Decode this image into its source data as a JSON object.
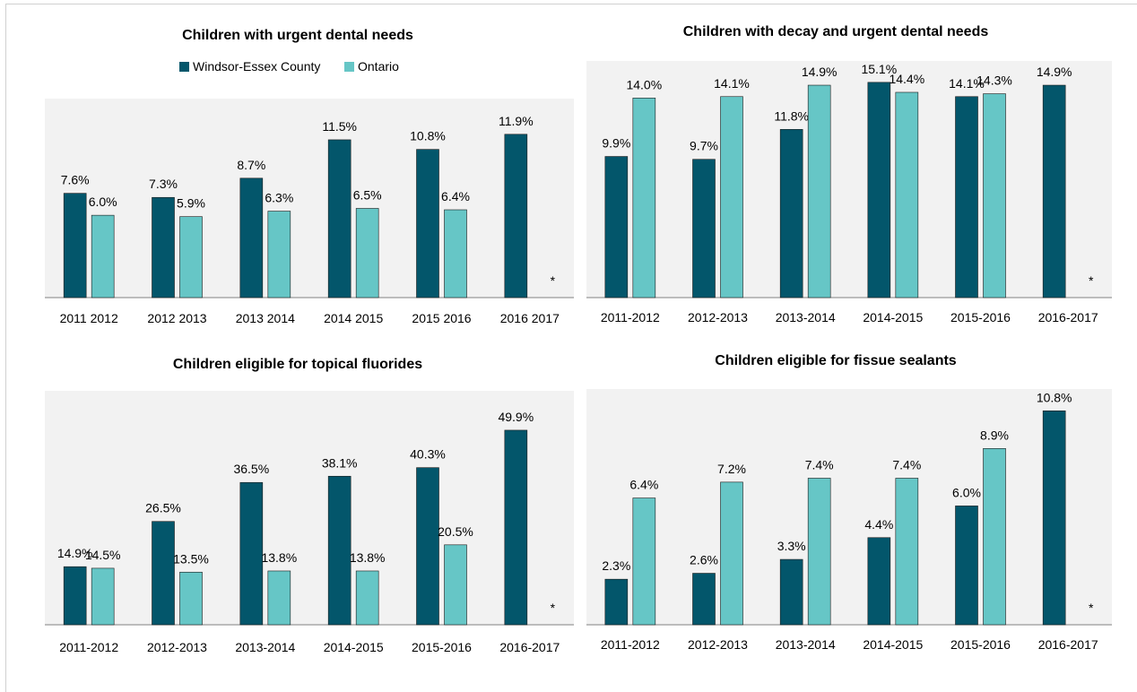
{
  "colors": {
    "windsor": "#03566b",
    "ontario": "#66c6c6",
    "plot_bg": "#f2f2f2"
  },
  "legend": {
    "windsor_label": "Windsor-Essex County",
    "ontario_label": "Ontario"
  },
  "chart_data": [
    {
      "type": "bar",
      "title": "Children with urgent dental needs",
      "categories": [
        "2011 2012",
        "2012 2013",
        "2013 2014",
        "2014 2015",
        "2015 2016",
        "2016 2017"
      ],
      "series": [
        {
          "name": "Windsor-Essex County",
          "values": [
            7.6,
            7.3,
            8.7,
            11.5,
            10.8,
            11.9
          ],
          "labels": [
            "7.6%",
            "7.3%",
            "8.7%",
            "11.5%",
            "10.8%",
            "11.9%"
          ]
        },
        {
          "name": "Ontario",
          "values": [
            6.0,
            5.9,
            6.3,
            6.5,
            6.4,
            null
          ],
          "labels": [
            "6.0%",
            "5.9%",
            "6.3%",
            "6.5%",
            "6.4%",
            "*"
          ]
        }
      ],
      "ylim": [
        0,
        14.5
      ],
      "legend": "top-center",
      "grid": false
    },
    {
      "type": "bar",
      "title": "Children with decay and urgent dental needs",
      "categories": [
        "2011-2012",
        "2012-2013",
        "2013-2014",
        "2014-2015",
        "2015-2016",
        "2016-2017"
      ],
      "series": [
        {
          "name": "Windsor-Essex County",
          "values": [
            9.9,
            9.7,
            11.8,
            15.1,
            14.1,
            14.9
          ],
          "labels": [
            "9.9%",
            "9.7%",
            "11.8%",
            "15.1%",
            "14.1%",
            "14.9%"
          ]
        },
        {
          "name": "Ontario",
          "values": [
            14.0,
            14.1,
            14.9,
            14.4,
            14.3,
            null
          ],
          "labels": [
            "14.0%",
            "14.1%",
            "14.9%",
            "14.4%",
            "14.3%",
            "*"
          ]
        }
      ],
      "ylim": [
        0,
        16.6
      ],
      "grid": false
    },
    {
      "type": "bar",
      "title": "Children eligible for topical fluorides",
      "categories": [
        "2011-2012",
        "2012-2013",
        "2013-2014",
        "2014-2015",
        "2015-2016",
        "2016-2017"
      ],
      "series": [
        {
          "name": "Windsor-Essex County",
          "values": [
            14.9,
            26.5,
            36.5,
            38.1,
            40.3,
            49.9
          ],
          "labels": [
            "14.9%",
            "26.5%",
            "36.5%",
            "38.1%",
            "40.3%",
            "49.9%"
          ]
        },
        {
          "name": "Ontario",
          "values": [
            14.5,
            13.5,
            13.8,
            13.8,
            20.5,
            null
          ],
          "labels": [
            "14.5%",
            "13.5%",
            "13.8%",
            "13.8%",
            "20.5%",
            "*"
          ]
        }
      ],
      "ylim": [
        0,
        60
      ],
      "grid": false
    },
    {
      "type": "bar",
      "title": "Children eligible for fissue sealants",
      "categories": [
        "2011-2012",
        "2012-2013",
        "2013-2014",
        "2014-2015",
        "2015-2016",
        "2016-2017"
      ],
      "series": [
        {
          "name": "Windsor-Essex County",
          "values": [
            2.3,
            2.6,
            3.3,
            4.4,
            6.0,
            10.8
          ],
          "labels": [
            "2.3%",
            "2.6%",
            "3.3%",
            "4.4%",
            "6.0%",
            "10.8%"
          ]
        },
        {
          "name": "Ontario",
          "values": [
            6.4,
            7.2,
            7.4,
            7.4,
            8.9,
            null
          ],
          "labels": [
            "6.4%",
            "7.2%",
            "7.4%",
            "7.4%",
            "8.9%",
            "*"
          ]
        }
      ],
      "ylim": [
        0,
        11.9
      ],
      "grid": false
    }
  ]
}
